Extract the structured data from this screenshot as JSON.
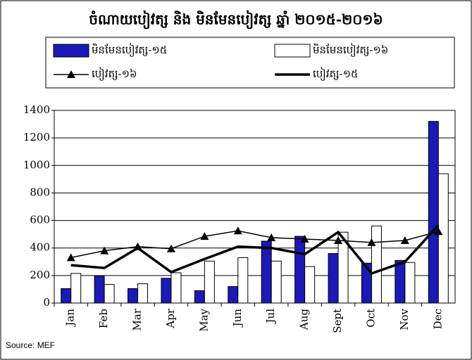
{
  "chart_data": {
    "type": "bar",
    "title": "ចំណាយបៀវត្ស និង មិនមែនបៀវត្ស ឆ្នាំ ២០១៥-២០១៦",
    "categories": [
      "Jan",
      "Feb",
      "Mar",
      "Apr",
      "May",
      "Jun",
      "Jul",
      "Aug",
      "Sept",
      "Oct",
      "Nov",
      "Dec"
    ],
    "series": [
      {
        "name": "មិនមែនបៀវត្ស-១៥",
        "type": "bar",
        "color": "#1a1ab8",
        "values": [
          105,
          195,
          105,
          180,
          90,
          120,
          450,
          485,
          360,
          290,
          310,
          1320
        ]
      },
      {
        "name": "មិនមែនបៀវត្ស-១៦",
        "type": "bar",
        "color": "#ffffff",
        "values": [
          215,
          135,
          140,
          220,
          305,
          330,
          305,
          265,
          515,
          560,
          295,
          940
        ]
      },
      {
        "name": "បៀវត្ស-១៦",
        "type": "line",
        "marker": "triangle",
        "color": "#000000",
        "values": [
          330,
          380,
          410,
          395,
          485,
          525,
          475,
          465,
          455,
          440,
          455,
          520
        ]
      },
      {
        "name": "បៀវត្ស-១៥",
        "type": "line",
        "marker": "none",
        "color": "#000000",
        "values": [
          275,
          255,
          400,
          225,
          320,
          410,
          400,
          355,
          515,
          215,
          300,
          565
        ]
      }
    ],
    "ylim": [
      0,
      1400
    ],
    "yticks": [
      0,
      200,
      400,
      600,
      800,
      1000,
      1200,
      1400
    ],
    "grid": true,
    "source": "Source: MEF"
  }
}
